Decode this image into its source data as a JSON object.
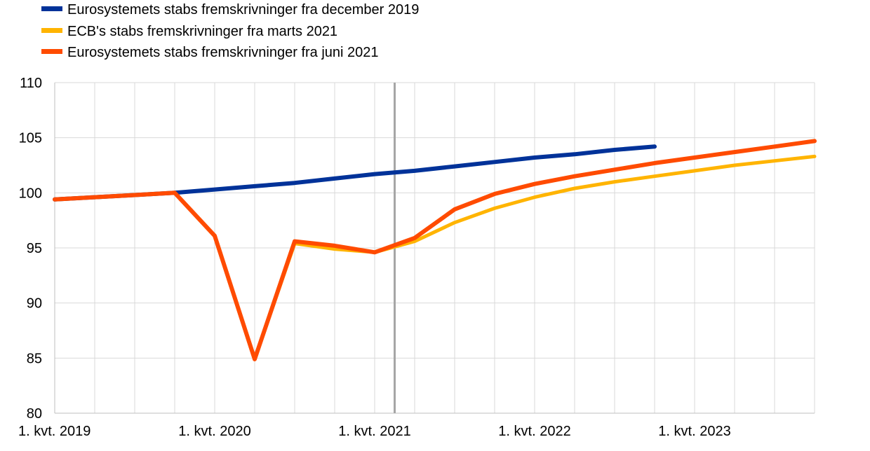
{
  "chart_data": {
    "type": "line",
    "title": "",
    "xlabel": "",
    "ylabel": "",
    "ylim": [
      80,
      110
    ],
    "yticks": [
      80,
      85,
      90,
      95,
      100,
      105,
      110
    ],
    "x_categories": [
      "2019Q1",
      "2019Q2",
      "2019Q3",
      "2019Q4",
      "2020Q1",
      "2020Q2",
      "2020Q3",
      "2020Q4",
      "2021Q1",
      "2021Q2",
      "2021Q3",
      "2021Q4",
      "2022Q1",
      "2022Q2",
      "2022Q3",
      "2022Q4",
      "2023Q1",
      "2023Q2",
      "2023Q3",
      "2023Q4"
    ],
    "x_tick_labels": [
      "1. kvt. 2019",
      "1. kvt. 2020",
      "1. kvt. 2021",
      "1. kvt. 2022",
      "1. kvt. 2023"
    ],
    "grid": true,
    "legend_position": "top-left",
    "projection_start_marker": "2021Q1",
    "series": [
      {
        "name": "Eurosystemets stabs fremskrivninger fra december 2019",
        "color": "#003299",
        "values": [
          99.4,
          99.6,
          99.8,
          100.0,
          100.3,
          100.6,
          100.9,
          101.3,
          101.7,
          102.0,
          102.4,
          102.8,
          103.2,
          103.5,
          103.9,
          104.2,
          null,
          null,
          null,
          null
        ]
      },
      {
        "name": "ECB's stabs fremskrivninger fra marts 2021",
        "color": "#ffb400",
        "values": [
          99.4,
          99.6,
          99.8,
          100.0,
          96.1,
          84.9,
          95.4,
          94.9,
          94.6,
          95.6,
          97.3,
          98.6,
          99.6,
          100.4,
          101.0,
          101.5,
          102.0,
          102.5,
          102.9,
          103.3
        ]
      },
      {
        "name": "Eurosystemets stabs fremskrivninger fra juni 2021",
        "color": "#ff4b00",
        "values": [
          99.4,
          99.6,
          99.8,
          100.0,
          96.1,
          84.9,
          95.6,
          95.2,
          94.6,
          95.9,
          98.5,
          99.9,
          100.8,
          101.5,
          102.1,
          102.7,
          103.2,
          103.7,
          104.2,
          104.7
        ]
      }
    ]
  }
}
